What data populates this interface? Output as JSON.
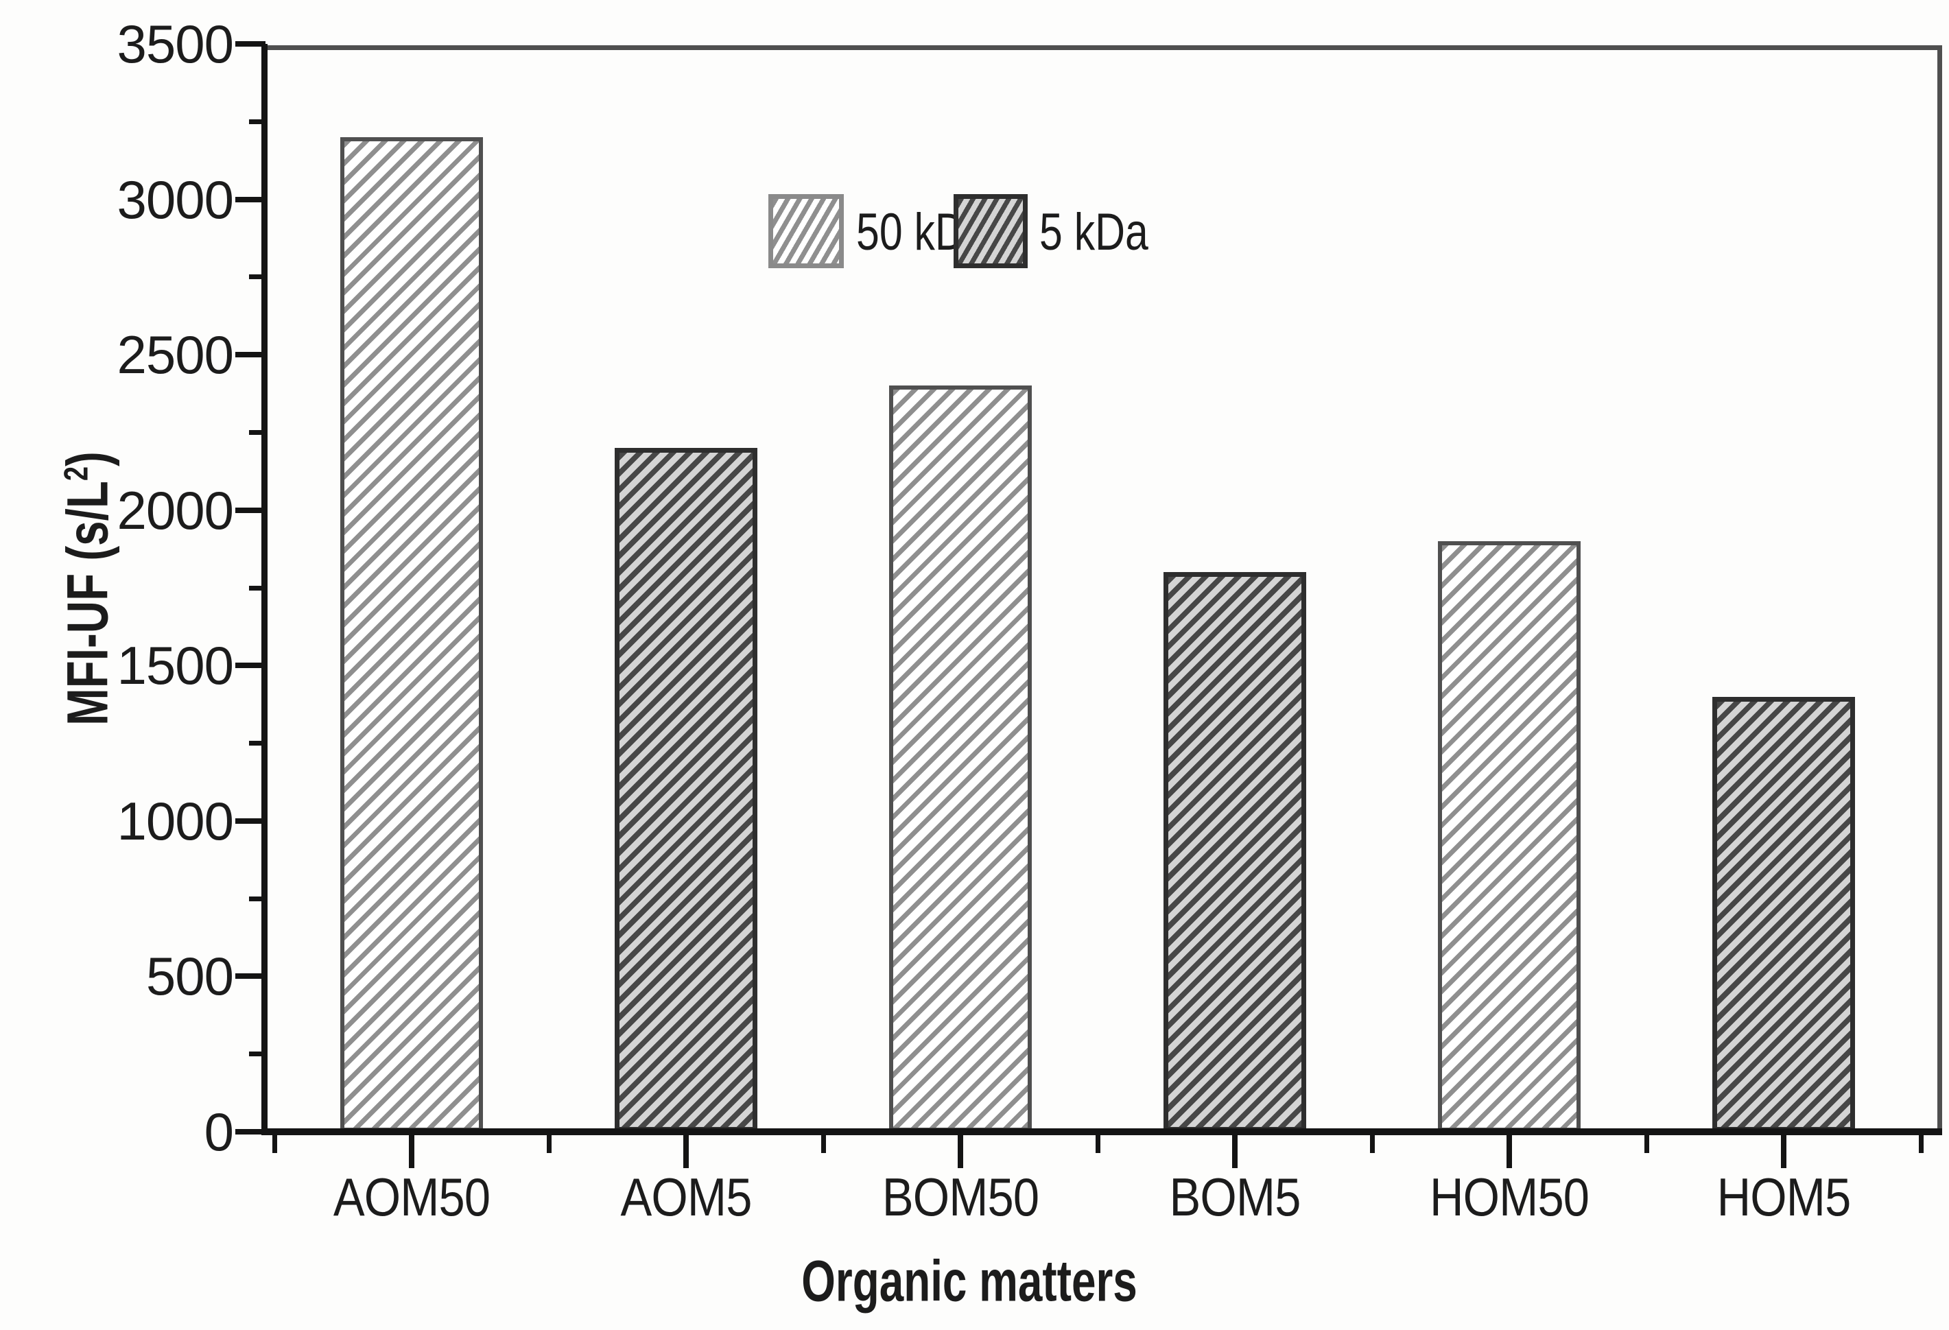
{
  "figure": {
    "background": "#fdfdfc",
    "text_color": "#1c1c1c",
    "axis_color": "#141414",
    "frame_color": "#4f4f4f"
  },
  "axes": {
    "y_title_prefix": "MFI-UF (s/L",
    "y_title_sup": "2",
    "y_title_suffix": ")",
    "x_title": "Organic matters"
  },
  "legend": {
    "entries": [
      {
        "label": "50 kDa",
        "series": "50 kDa"
      },
      {
        "label": "5 kDa",
        "series": "5 kDa"
      }
    ]
  },
  "chart_data": {
    "type": "bar",
    "title": "",
    "xlabel": "Organic matters",
    "ylabel": "MFI-UF (s/L²)",
    "ylim": [
      0,
      3500
    ],
    "grid": false,
    "legend_position": "top-center",
    "yticks_major": [
      0,
      500,
      1000,
      1500,
      2000,
      2500,
      3000,
      3500
    ],
    "yticks_minor": [
      250,
      750,
      1250,
      1750,
      2250,
      2750,
      3250
    ],
    "categories": [
      "AOM50",
      "AOM5",
      "BOM50",
      "BOM5",
      "HOM50",
      "HOM5"
    ],
    "bars": [
      {
        "category": "AOM50",
        "series": "50 kDa",
        "value": 3200
      },
      {
        "category": "AOM5",
        "series": "5 kDa",
        "value": 2200
      },
      {
        "category": "BOM50",
        "series": "50 kDa",
        "value": 2400
      },
      {
        "category": "BOM5",
        "series": "5 kDa",
        "value": 1800
      },
      {
        "category": "HOM50",
        "series": "50 kDa",
        "value": 1900
      },
      {
        "category": "HOM5",
        "series": "5 kDa",
        "value": 1400
      }
    ],
    "series_styles": {
      "50 kDa": {
        "fill": "#ffffff",
        "hatch": "#8f8f8f",
        "border": "#505050"
      },
      "5 kDa": {
        "fill": "#d4d4d4",
        "hatch": "#474747",
        "border": "#2e2e2e"
      }
    }
  }
}
